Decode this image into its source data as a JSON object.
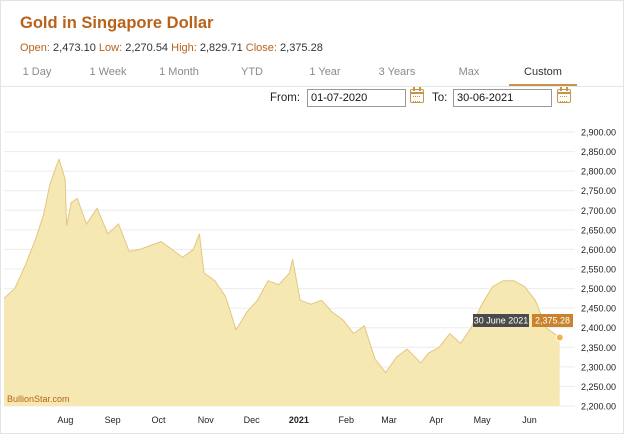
{
  "header": {
    "title": "Gold in Singapore Dollar",
    "open_label": "Open:",
    "open_value": "2,473.10",
    "low_label": "Low:",
    "low_value": "2,270.54",
    "high_label": "High:",
    "high_value": "2,829.71",
    "close_label": "Close:",
    "close_value": "2,375.28"
  },
  "tabs": [
    "1 Day",
    "1 Week",
    "1 Month",
    "YTD",
    "1 Year",
    "3 Years",
    "Max",
    "Custom"
  ],
  "active_tab": "Custom",
  "range": {
    "from_label": "From:",
    "from_value": "01-07-2020",
    "to_label": "To:",
    "to_value": "30-06-2021"
  },
  "credit": "BullionStar.com",
  "colors": {
    "accent": "#b8621b",
    "area_fill": "#f6e8b3",
    "area_line": "#e3c77f",
    "tooltip_date_bg": "#4a4a4a",
    "tooltip_value_bg": "#c8832c"
  },
  "tooltip": {
    "date": "30 June 2021",
    "value": "2,375.28"
  },
  "chart_data": {
    "type": "area",
    "title": "Gold in Singapore Dollar",
    "ylim": [
      2200,
      2900
    ],
    "yticks": [
      "2,900.00",
      "2,850.00",
      "2,800.00",
      "2,750.00",
      "2,700.00",
      "2,650.00",
      "2,600.00",
      "2,550.00",
      "2,500.00",
      "2,450.00",
      "2,400.00",
      "2,350.00",
      "2,300.00",
      "2,250.00",
      "2,200.00"
    ],
    "xticks": [
      "Aug",
      "Sep",
      "Oct",
      "Nov",
      "Dec",
      "2021",
      "Feb",
      "Mar",
      "Apr",
      "May",
      "Jun"
    ],
    "grid": true,
    "legend": "none",
    "series": [
      {
        "x": [
          "2020-07-01",
          "2020-07-08",
          "2020-07-15",
          "2020-07-22",
          "2020-07-27",
          "2020-07-31",
          "2020-08-04",
          "2020-08-06",
          "2020-08-10",
          "2020-08-11",
          "2020-08-14",
          "2020-08-18",
          "2020-08-24",
          "2020-08-31",
          "2020-09-07",
          "2020-09-14",
          "2020-09-21",
          "2020-09-28",
          "2020-10-05",
          "2020-10-12",
          "2020-10-19",
          "2020-10-26",
          "2020-11-02",
          "2020-11-06",
          "2020-11-09",
          "2020-11-16",
          "2020-11-23",
          "2020-11-30",
          "2020-12-07",
          "2020-12-14",
          "2020-12-21",
          "2020-12-28",
          "2021-01-04",
          "2021-01-06",
          "2021-01-11",
          "2021-01-18",
          "2021-01-25",
          "2021-02-01",
          "2021-02-08",
          "2021-02-15",
          "2021-02-22",
          "2021-03-01",
          "2021-03-08",
          "2021-03-15",
          "2021-03-22",
          "2021-03-31",
          "2021-04-05",
          "2021-04-12",
          "2021-04-19",
          "2021-04-26",
          "2021-05-03",
          "2021-05-10",
          "2021-05-17",
          "2021-05-24",
          "2021-05-31",
          "2021-06-07",
          "2021-06-14",
          "2021-06-21",
          "2021-06-30"
        ],
        "values": [
          2475,
          2500,
          2560,
          2630,
          2690,
          2765,
          2810,
          2830,
          2780,
          2660,
          2720,
          2730,
          2665,
          2705,
          2640,
          2665,
          2595,
          2600,
          2610,
          2620,
          2600,
          2580,
          2600,
          2640,
          2540,
          2520,
          2480,
          2395,
          2440,
          2470,
          2520,
          2510,
          2540,
          2575,
          2470,
          2460,
          2470,
          2440,
          2420,
          2385,
          2405,
          2320,
          2285,
          2325,
          2345,
          2310,
          2335,
          2350,
          2385,
          2360,
          2400,
          2460,
          2505,
          2520,
          2520,
          2505,
          2470,
          2400,
          2375
        ]
      }
    ]
  }
}
